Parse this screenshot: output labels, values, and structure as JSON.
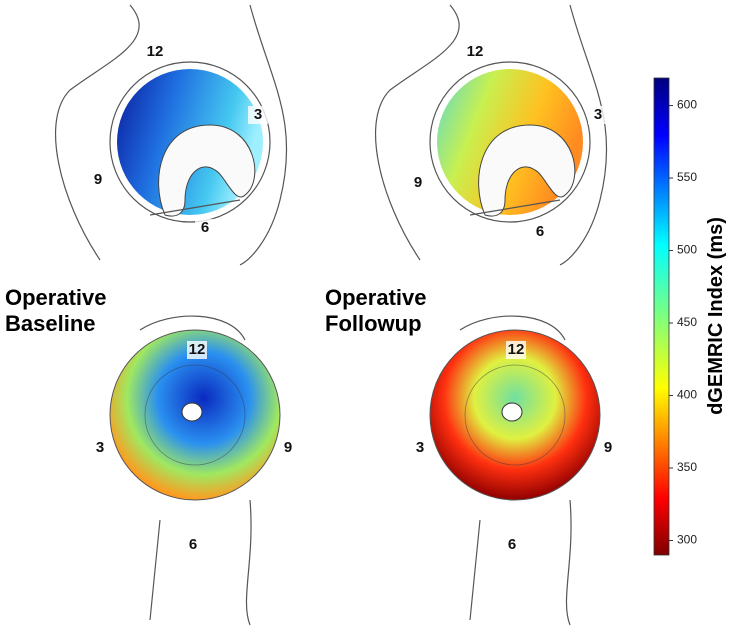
{
  "panels": [
    {
      "label_lines": [
        "Operative",
        "Baseline"
      ]
    },
    {
      "label_lines": [
        "Operative",
        "Followup"
      ]
    }
  ],
  "clock_labels": [
    "12",
    "3",
    "6",
    "9"
  ],
  "colorbar": {
    "title": "dGEMRIC Index (ms)",
    "lim": [
      290,
      619
    ],
    "ticks": [
      300,
      350,
      400,
      450,
      500,
      550,
      600
    ]
  }
}
